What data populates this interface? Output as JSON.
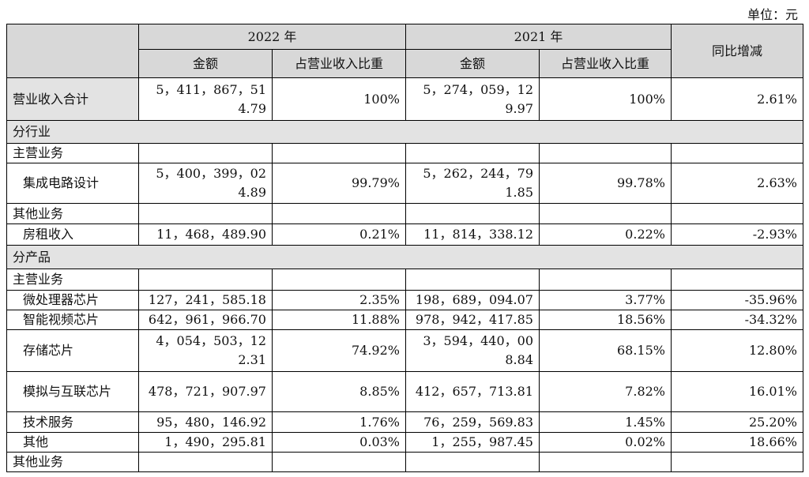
{
  "unit_label": "单位：元",
  "header": {
    "year_a": "2022 年",
    "year_b": "2021 年",
    "amount": "金额",
    "ratio": "占营业收入比重",
    "yoy": "同比增减"
  },
  "rows": [
    {
      "label": "营业收入合计",
      "a_amount": "5，411，867，514.79",
      "a_ratio": "100%",
      "b_amount": "5，274，059，129.97",
      "b_ratio": "100%",
      "yoy": "2.61%"
    },
    {
      "label": "分行业"
    },
    {
      "label": "主营业务"
    },
    {
      "label": "集成电路设计",
      "a_amount": "5，400，399，024.89",
      "a_ratio": "99.79%",
      "b_amount": "5，262，244，791.85",
      "b_ratio": "99.78%",
      "yoy": "2.63%"
    },
    {
      "label": "其他业务"
    },
    {
      "label": "房租收入",
      "a_amount": "11，468，489.90",
      "a_ratio": "0.21%",
      "b_amount": "11，814，338.12",
      "b_ratio": "0.22%",
      "yoy": "-2.93%"
    },
    {
      "label": "分产品"
    },
    {
      "label": "主营业务"
    },
    {
      "label": "微处理器芯片",
      "a_amount": "127，241，585.18",
      "a_ratio": "2.35%",
      "b_amount": "198，689，094.07",
      "b_ratio": "3.77%",
      "yoy": "-35.96%"
    },
    {
      "label": "智能视频芯片",
      "a_amount": "642，961，966.70",
      "a_ratio": "11.88%",
      "b_amount": "978，942，417.85",
      "b_ratio": "18.56%",
      "yoy": "-34.32%"
    },
    {
      "label": "存储芯片",
      "a_amount": "4，054，503，122.31",
      "a_ratio": "74.92%",
      "b_amount": "3，594，440，008.84",
      "b_ratio": "68.15%",
      "yoy": "12.80%"
    },
    {
      "label": "模拟与互联芯片",
      "a_amount": "478，721，907.97",
      "a_ratio": "8.85%",
      "b_amount": "412，657，713.81",
      "b_ratio": "7.82%",
      "yoy": "16.01%"
    },
    {
      "label": "技术服务",
      "a_amount": "95，480，146.92",
      "a_ratio": "1.76%",
      "b_amount": "76，259，569.83",
      "b_ratio": "1.45%",
      "yoy": "25.20%"
    },
    {
      "label": "其他",
      "a_amount": "1，490，295.81",
      "a_ratio": "0.03%",
      "b_amount": "1，255，987.45",
      "b_ratio": "0.02%",
      "yoy": "18.66%"
    },
    {
      "label": "其他业务"
    }
  ]
}
